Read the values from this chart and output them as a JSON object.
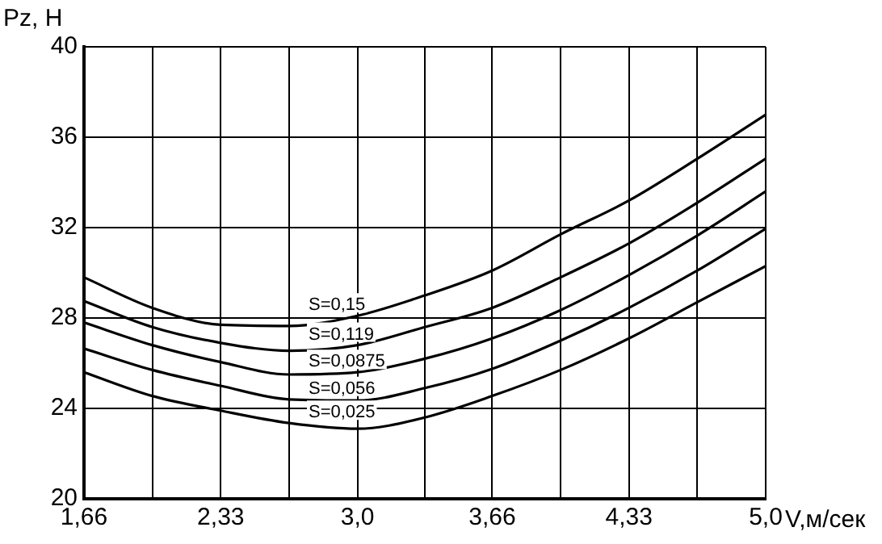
{
  "chart_data": {
    "type": "line",
    "xlabel": "V,м/сек",
    "ylabel": "Pz, Н",
    "x": [
      1.66,
      1.995,
      2.33,
      2.665,
      3.0,
      3.33,
      3.66,
      3.995,
      4.33,
      4.665,
      5.0
    ],
    "xlim": [
      1.66,
      5.0
    ],
    "xticks": [
      {
        "value": 1.66,
        "label": "1,66"
      },
      {
        "value": 1.995,
        "label": null
      },
      {
        "value": 2.33,
        "label": "2,33"
      },
      {
        "value": 2.665,
        "label": null
      },
      {
        "value": 3.0,
        "label": "3,0"
      },
      {
        "value": 3.33,
        "label": null
      },
      {
        "value": 3.66,
        "label": "3,66"
      },
      {
        "value": 3.995,
        "label": null
      },
      {
        "value": 4.33,
        "label": "4,33"
      },
      {
        "value": 4.665,
        "label": null
      },
      {
        "value": 5.0,
        "label": "5,0"
      }
    ],
    "ylim": [
      20,
      40
    ],
    "yticks": [
      20,
      24,
      28,
      32,
      36,
      40
    ],
    "grid": true,
    "legend": false,
    "marker": "none",
    "line_style": "solid",
    "series": [
      {
        "name": "S=0,15",
        "color": "#000000",
        "values": [
          29.8,
          28.45,
          27.7,
          27.65,
          28.1,
          29.0,
          30.1,
          31.7,
          33.2,
          35.05,
          37.0
        ]
      },
      {
        "name": "S=0,119",
        "color": "#000000",
        "values": [
          28.75,
          27.6,
          26.9,
          26.55,
          26.8,
          27.6,
          28.45,
          29.8,
          31.3,
          33.1,
          35.05
        ]
      },
      {
        "name": "S=0,0875",
        "color": "#000000",
        "values": [
          27.8,
          26.8,
          26.05,
          25.5,
          25.6,
          26.2,
          27.1,
          28.35,
          29.9,
          31.65,
          33.6
        ]
      },
      {
        "name": "S=0,056",
        "color": "#000000",
        "values": [
          26.65,
          25.7,
          25.0,
          24.4,
          24.35,
          24.9,
          25.75,
          27.0,
          28.45,
          30.1,
          31.95
        ]
      },
      {
        "name": "S=0,025",
        "color": "#000000",
        "values": [
          25.6,
          24.55,
          23.9,
          23.35,
          23.1,
          23.6,
          24.55,
          25.7,
          27.1,
          28.7,
          30.3
        ]
      }
    ]
  }
}
